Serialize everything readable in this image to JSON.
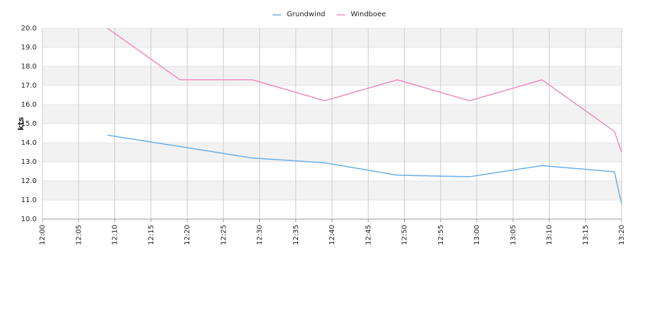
{
  "chart_data": {
    "type": "line",
    "y_label": "kts",
    "x": [
      "12:09",
      "12:19",
      "12:29",
      "12:39",
      "12:49",
      "12:59",
      "13:09",
      "13:19",
      "13:20"
    ],
    "series": [
      {
        "name": "Grundwind",
        "color": "#6aaee8",
        "values": [
          14.4,
          13.8,
          13.2,
          12.95,
          12.3,
          12.22,
          12.8,
          12.48,
          10.8
        ]
      },
      {
        "name": "Windboee",
        "color": "#ee8cbe",
        "values": [
          20.0,
          17.3,
          17.3,
          16.2,
          17.3,
          16.2,
          17.3,
          14.6,
          13.5
        ]
      }
    ],
    "xlim": [
      "12:00",
      "13:20"
    ],
    "xticks": [
      "12:00",
      "12:05",
      "12:10",
      "12:15",
      "12:20",
      "12:25",
      "12:30",
      "12:35",
      "12:40",
      "12:45",
      "12:50",
      "12:55",
      "13:00",
      "13:05",
      "13:10",
      "13:15",
      "13:20"
    ],
    "ylim": [
      10,
      20
    ],
    "yticks": [
      {
        "value": 10,
        "label": "10.0"
      },
      {
        "value": 11,
        "label": "11.0"
      },
      {
        "value": 12,
        "label": "12.0"
      },
      {
        "value": 13,
        "label": "13.0"
      },
      {
        "value": 14,
        "label": "14.0"
      },
      {
        "value": 15,
        "label": "15.0"
      },
      {
        "value": 16,
        "label": "16.0"
      },
      {
        "value": 17,
        "label": "17.0"
      },
      {
        "value": 18,
        "label": "18.0"
      },
      {
        "value": 19,
        "label": "19.0"
      },
      {
        "value": 20,
        "label": "20.0"
      }
    ],
    "grid": true,
    "legend": "top"
  }
}
